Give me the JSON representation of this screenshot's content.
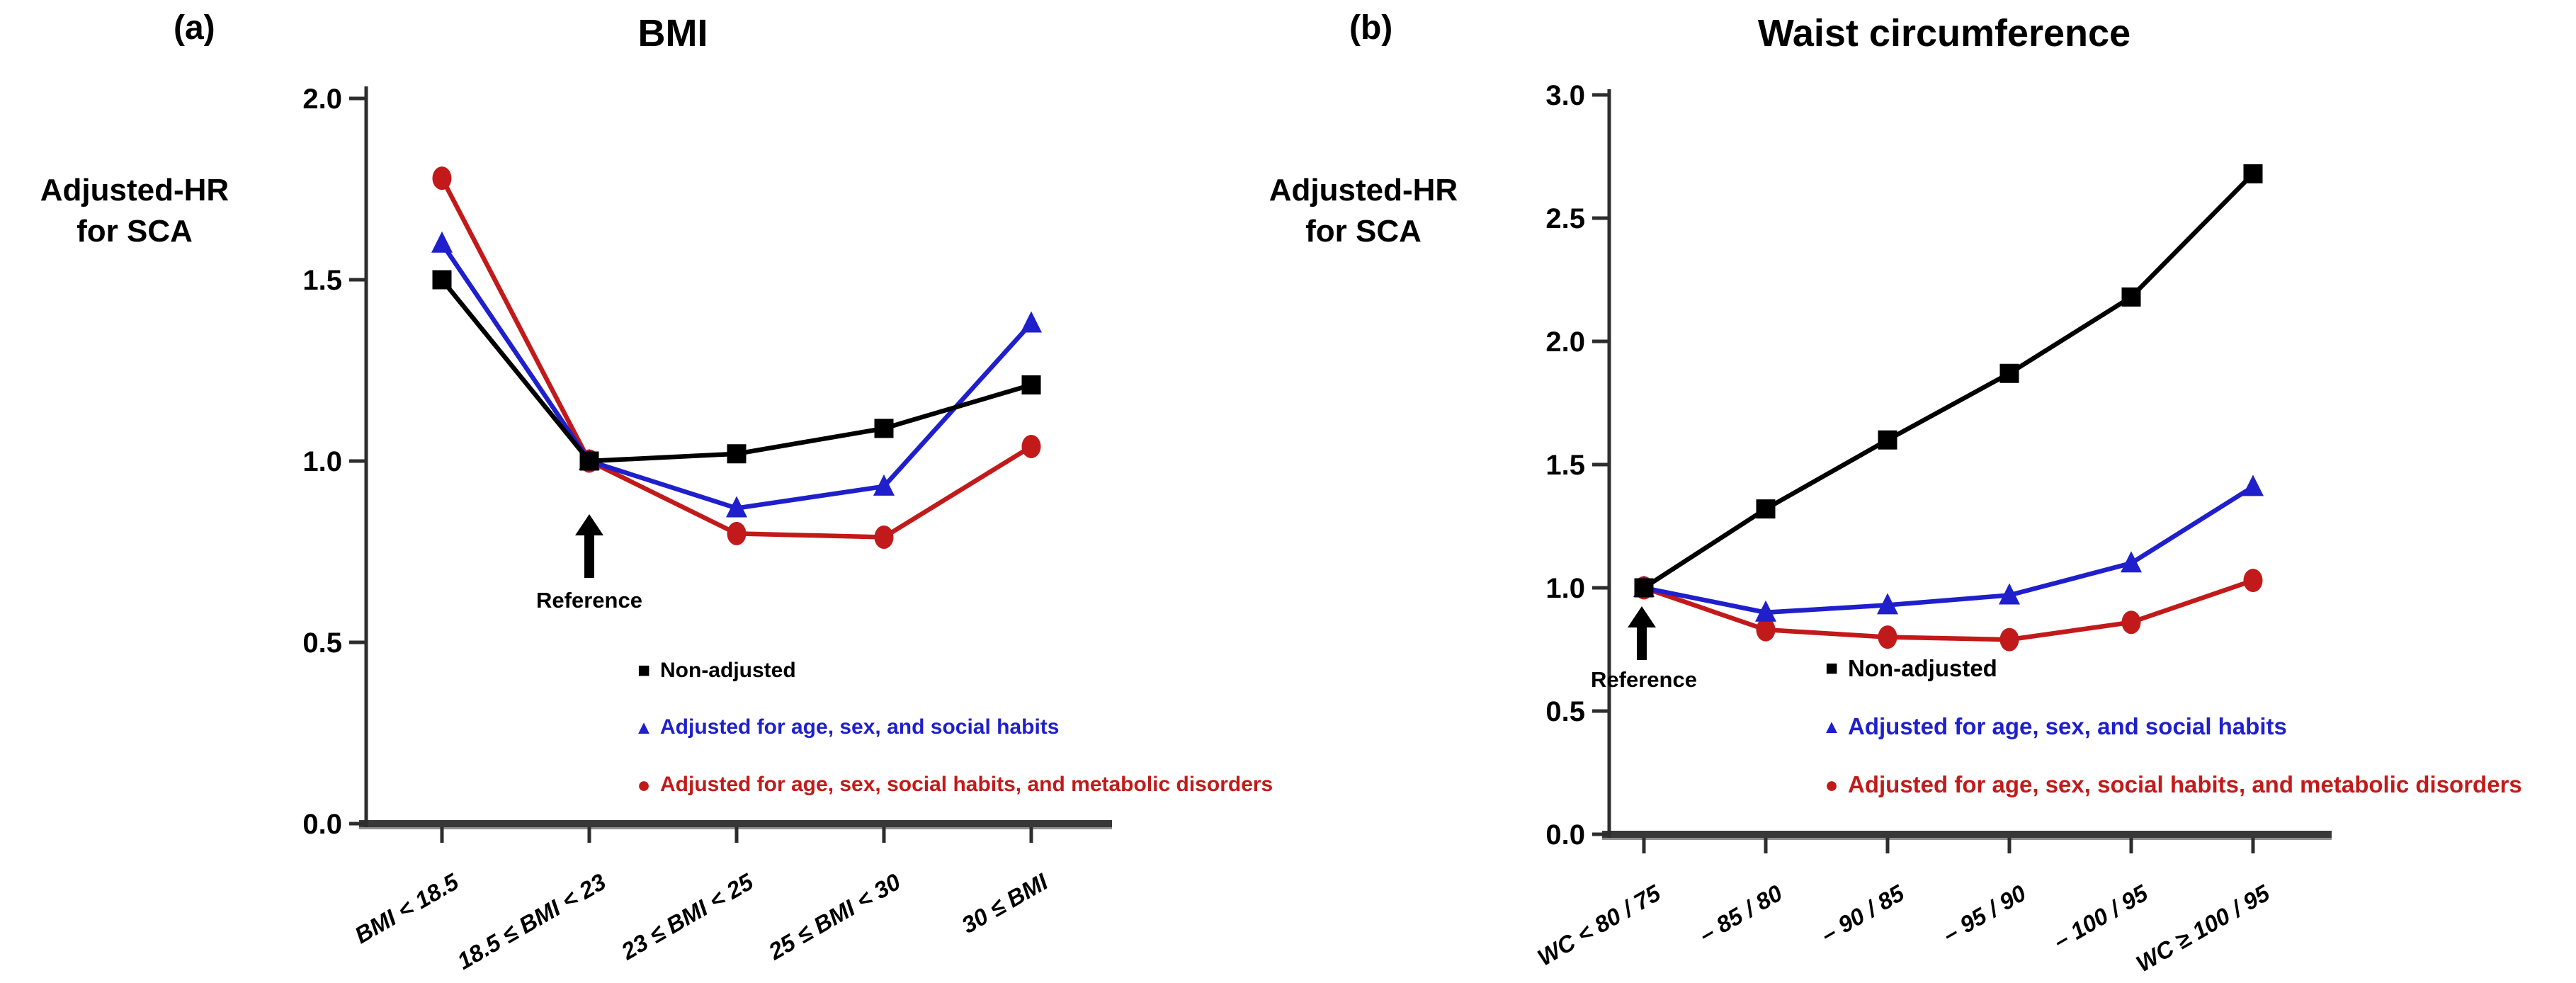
{
  "figure": {
    "background_color": "#ffffff",
    "axis_color": "#383838",
    "axis_shadow_color": "#909090"
  },
  "chart_data": [
    {
      "type": "line",
      "panel_letter": "(a)",
      "title": "BMI",
      "y_axis_label": [
        "Adjusted-HR",
        "for SCA"
      ],
      "ylabel": "Adjusted-HR for SCA",
      "xlabel": "",
      "ylim": [
        0.0,
        2.0
      ],
      "y_ticks": [
        "2.0",
        "1.5",
        "1.0",
        "0.5",
        "0.0"
      ],
      "grid": false,
      "legend_position": "inside-bottom-right",
      "categories": [
        "BMI < 18.5",
        "18.5 ≤ BMI < 23",
        "23 ≤ BMI < 25",
        "25 ≤ BMI < 30",
        "30 ≤ BMI"
      ],
      "reference": {
        "label": "Reference",
        "category_index": 1,
        "value": 1.0
      },
      "series": [
        {
          "name": "Non-adjusted",
          "color": "#000000",
          "marker": "square",
          "values": [
            1.5,
            1.0,
            1.02,
            1.09,
            1.21
          ]
        },
        {
          "name": "Adjusted for age, sex, and social habits",
          "color": "#1f1fcc",
          "marker": "triangle",
          "values": [
            1.6,
            1.0,
            0.87,
            0.93,
            1.38
          ]
        },
        {
          "name": "Adjusted for age, sex, social habits, and metabolic disorders",
          "color": "#c21a1a",
          "marker": "circle",
          "values": [
            1.78,
            1.0,
            0.8,
            0.79,
            1.04
          ]
        }
      ]
    },
    {
      "type": "line",
      "panel_letter": "(b)",
      "title": "Waist circumference",
      "y_axis_label": [
        "Adjusted-HR",
        "for SCA"
      ],
      "ylabel": "Adjusted-HR for SCA",
      "xlabel": "",
      "ylim": [
        0.0,
        3.0
      ],
      "y_ticks": [
        "3.0",
        "2.5",
        "2.0",
        "1.5",
        "1.0",
        "0.5",
        "0.0"
      ],
      "grid": false,
      "legend_position": "inside-bottom-right",
      "categories": [
        "WC < 80 / 75",
        "– 85 / 80",
        "– 90 / 85",
        "– 95 / 90",
        "– 100 / 95",
        "WC ≥ 100 / 95"
      ],
      "reference": {
        "label": "Reference",
        "category_index": 0,
        "value": 1.0
      },
      "series": [
        {
          "name": "Non-adjusted",
          "color": "#000000",
          "marker": "square",
          "values": [
            1.0,
            1.32,
            1.6,
            1.87,
            2.18,
            2.68
          ]
        },
        {
          "name": "Adjusted for age, sex, and social habits",
          "color": "#1f1fcc",
          "marker": "triangle",
          "values": [
            1.0,
            0.9,
            0.93,
            0.97,
            1.1,
            1.41
          ]
        },
        {
          "name": "Adjusted for age, sex, social habits, and metabolic disorders",
          "color": "#c21a1a",
          "marker": "circle",
          "values": [
            1.0,
            0.83,
            0.8,
            0.79,
            0.86,
            1.03
          ]
        }
      ]
    }
  ]
}
